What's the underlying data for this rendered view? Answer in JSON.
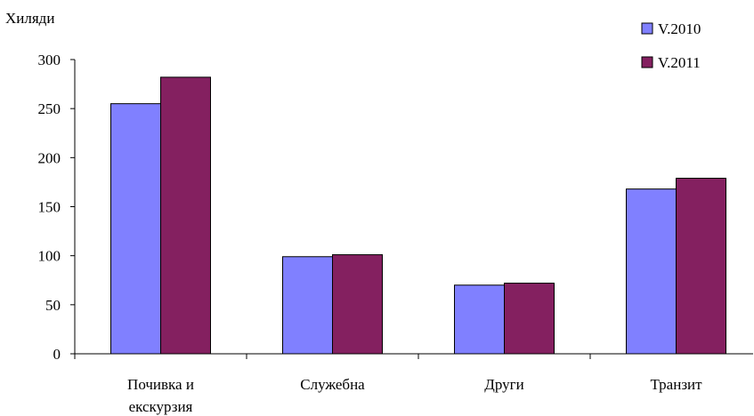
{
  "chart_data": {
    "type": "bar",
    "title": "",
    "xlabel": "",
    "ylabel": "Хиляди",
    "categories": [
      [
        "Почивка и",
        "екскурзия"
      ],
      [
        "Служебна"
      ],
      [
        "Други"
      ],
      [
        "Транзит"
      ]
    ],
    "series": [
      {
        "name": "V.2010",
        "color": "#8080ff",
        "values": [
          255,
          99,
          70,
          168
        ]
      },
      {
        "name": "V.2011",
        "color": "#842060",
        "values": [
          282,
          101,
          72,
          179
        ]
      }
    ],
    "ylim": [
      0,
      300
    ],
    "yticks": [
      0,
      50,
      100,
      150,
      200,
      250,
      300
    ],
    "grid": false,
    "legend_position": "top-right"
  }
}
